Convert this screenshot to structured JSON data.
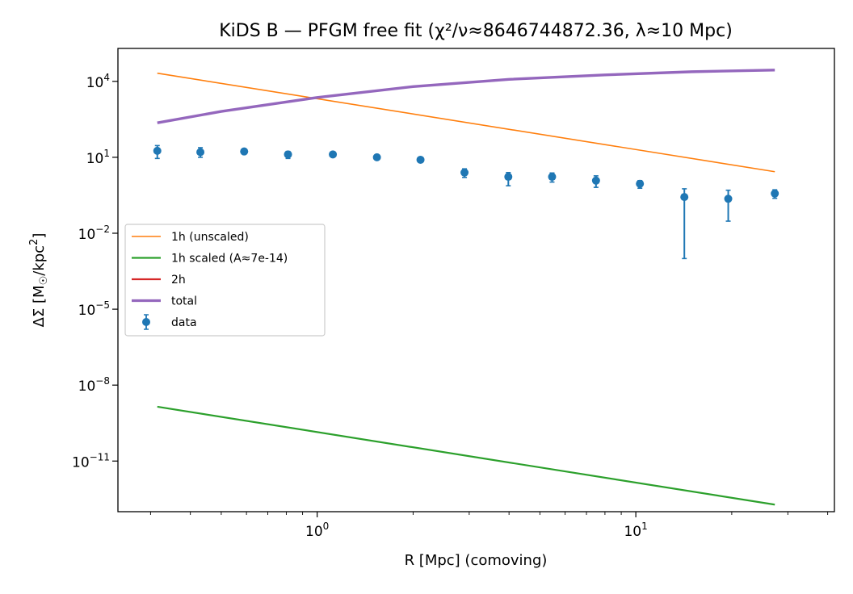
{
  "chart_data": {
    "type": "line",
    "title": "KiDS B — PFGM free fit (χ²/ν≈8646744872.36, λ≈10 Mpc)",
    "xlabel": "R [Mpc] (comoving)",
    "ylabel": "ΔΣ [M☉/kpc²]",
    "xscale": "log",
    "yscale": "log",
    "xlim": [
      0.237,
      42.0
    ],
    "ylim": [
      1e-13,
      200000.0
    ],
    "grid": false,
    "legend_position": "center-left",
    "x_tick_labels": [
      "10^0",
      "10^1"
    ],
    "x_tick_values": [
      1,
      10
    ],
    "y_tick_labels": [
      "10^4",
      "10^1",
      "10^-2",
      "10^-5",
      "10^-8",
      "10^-11"
    ],
    "y_tick_values": [
      10000,
      10,
      0.01,
      1e-05,
      1e-08,
      1e-11
    ],
    "colors": {
      "one_halo_unscaled": "#ff7f0e",
      "one_halo_scaled": "#2ca02c",
      "two_halo": "#d62728",
      "total": "#9467bd",
      "data": "#1f77b4"
    },
    "series": [
      {
        "name": "1h (unscaled)",
        "x": [
          0.315,
          27.3
        ],
        "y": [
          21000,
          2.7
        ]
      },
      {
        "name": "1h scaled (A≈7e-14)",
        "x": [
          0.315,
          27.3
        ],
        "y": [
          1.4e-09,
          1.9e-13
        ]
      },
      {
        "name": "2h",
        "x": [],
        "y": []
      },
      {
        "name": "total",
        "x": [
          0.315,
          0.5,
          1.0,
          2.0,
          4.0,
          8.0,
          15.0,
          27.3
        ],
        "y": [
          230,
          650,
          2300,
          6200,
          12000,
          18000,
          24000,
          28000
        ]
      },
      {
        "name": "data",
        "x": [
          0.315,
          0.43,
          0.59,
          0.81,
          1.12,
          1.54,
          2.11,
          2.9,
          3.98,
          5.46,
          7.5,
          10.3,
          14.2,
          19.5,
          27.3
        ],
        "y": [
          18,
          16,
          17,
          13,
          13,
          10,
          8,
          2.5,
          1.7,
          1.7,
          1.2,
          0.9,
          0.27,
          0.23,
          0.37
        ],
        "yerr_low": [
          9,
          6,
          3,
          4,
          1.5,
          2,
          1.5,
          0.9,
          0.95,
          0.65,
          0.55,
          0.3,
          0.269,
          0.2,
          0.13
        ],
        "yerr_high": [
          11,
          8,
          4,
          4,
          2,
          2,
          1.5,
          1.0,
          0.8,
          0.7,
          0.65,
          0.3,
          0.3,
          0.27,
          0.15
        ]
      }
    ]
  }
}
